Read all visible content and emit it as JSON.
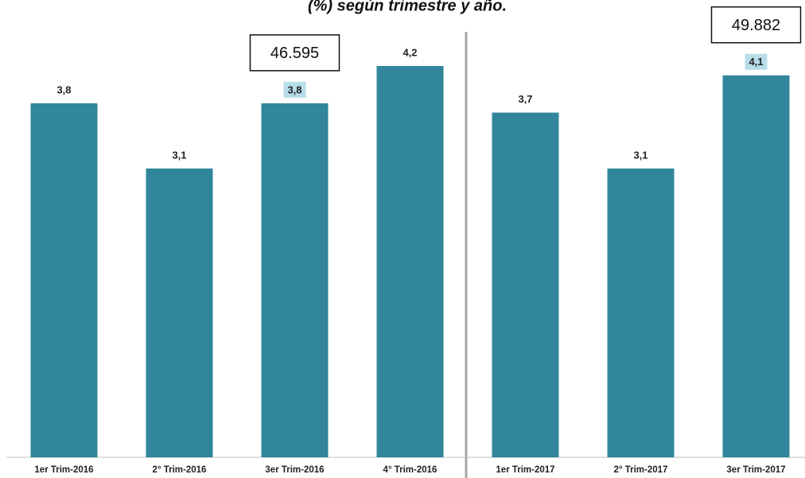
{
  "chart_data": {
    "type": "bar",
    "title": "(%) según trimestre y año.",
    "categories": [
      "1er Trim-2016",
      "2° Trim-2016",
      "3er Trim-2016",
      "4° Trim-2016",
      "1er Trim-2017",
      "2° Trim-2017",
      "3er Trim-2017"
    ],
    "values": [
      3.8,
      3.1,
      3.8,
      4.2,
      3.7,
      3.1,
      4.1
    ],
    "value_labels": [
      "3,8",
      "3,1",
      "3,8",
      "4,2",
      "3,7",
      "3,1",
      "4,1"
    ],
    "color": "#31869b",
    "ylim": [
      0,
      4.9
    ],
    "annotations": [
      {
        "label": "46.595",
        "category": "3er Trim-2016"
      },
      {
        "label": "49.882",
        "category": "3er Trim-2017"
      }
    ]
  }
}
